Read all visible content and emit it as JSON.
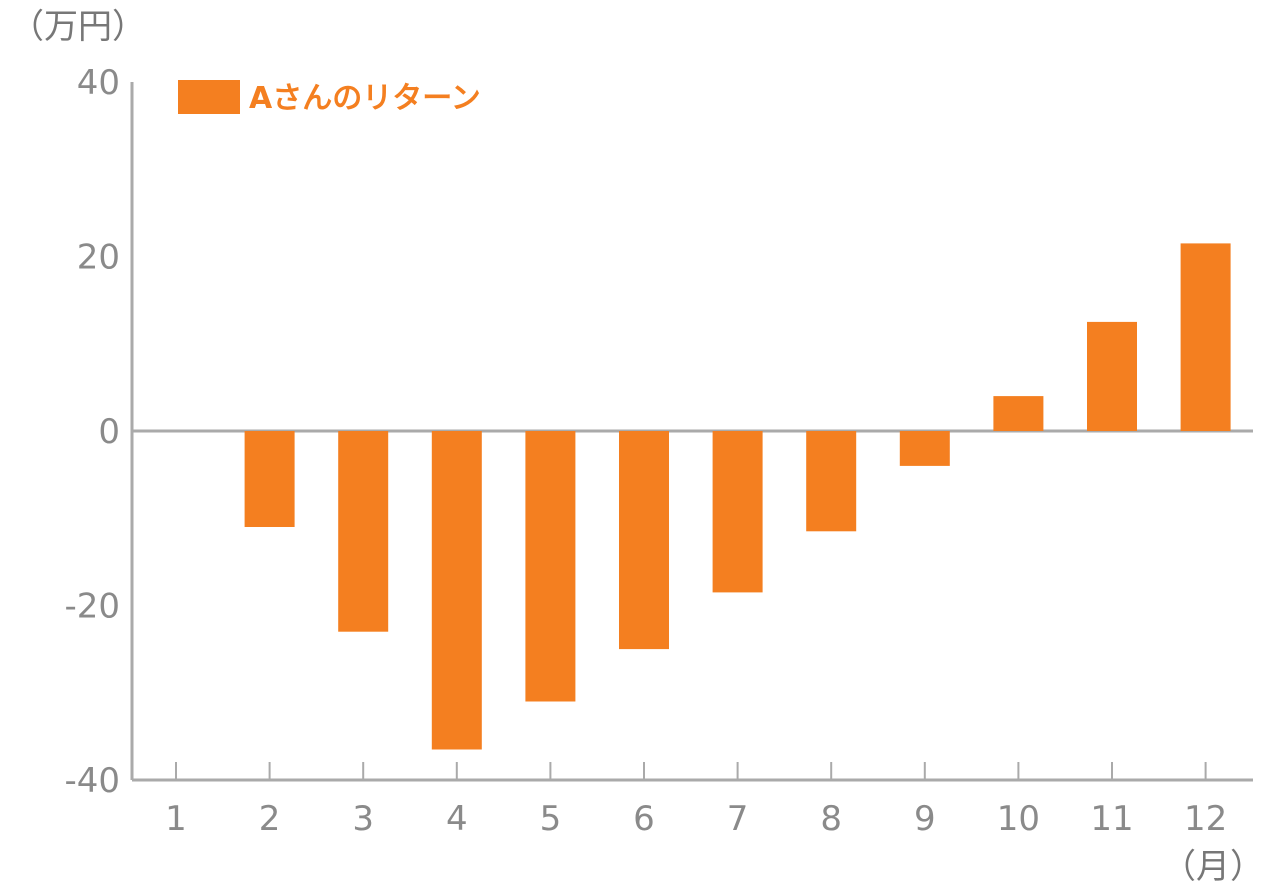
{
  "chart_data": {
    "type": "bar",
    "categories": [
      "1",
      "2",
      "3",
      "4",
      "5",
      "6",
      "7",
      "8",
      "9",
      "10",
      "11",
      "12"
    ],
    "series": [
      {
        "name": "Aさんのリターン",
        "values": [
          0,
          -11,
          -23,
          -36.5,
          -31,
          -25,
          -18.5,
          -11.5,
          -4,
          4,
          12.5,
          21.5
        ]
      }
    ],
    "y_unit": "（万円）",
    "x_unit": "（月）",
    "ylim": [
      -40,
      40
    ],
    "yticks": [
      {
        "value": 40,
        "label": "40"
      },
      {
        "value": 20,
        "label": "20"
      },
      {
        "value": 0,
        "label": "0"
      },
      {
        "value": -20,
        "label": "-20"
      },
      {
        "value": -40,
        "label": "-40"
      }
    ],
    "grid": false,
    "legend_position": "top-left",
    "colors": {
      "bar": "#f47f20",
      "axis": "#aaaaaa",
      "tick_text": "#8a8a8a",
      "unit_text": "#777777",
      "legend_text": "#f47f20"
    }
  }
}
